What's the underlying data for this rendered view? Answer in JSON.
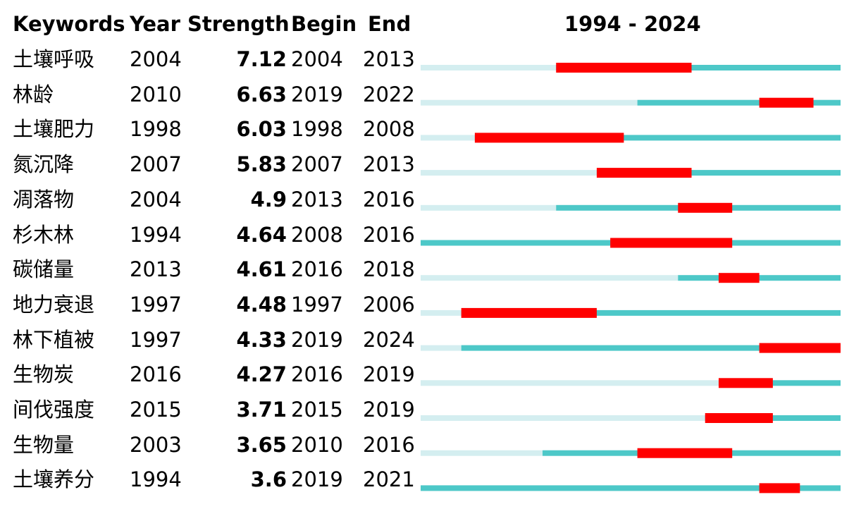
{
  "headers": {
    "keywords": "Keywords",
    "year": "Year",
    "strength": "Strength",
    "begin": "Begin",
    "end": "End",
    "range": "1994 - 2024"
  },
  "colors": {
    "pre_year": "#d4eef0",
    "active": "#4dc8c8",
    "burst": "#ff0000"
  },
  "chart_data": {
    "type": "table",
    "timeline_start": 1994,
    "timeline_end": 2024,
    "columns": [
      "Keywords",
      "Year",
      "Strength",
      "Begin",
      "End",
      "1994 - 2024"
    ],
    "rows": [
      {
        "keyword": "土壤呼吸",
        "year": 2004,
        "strength": "7.12",
        "begin": 2004,
        "end": 2013
      },
      {
        "keyword": "林龄",
        "year": 2010,
        "strength": "6.63",
        "begin": 2019,
        "end": 2022
      },
      {
        "keyword": "土壤肥力",
        "year": 1998,
        "strength": "6.03",
        "begin": 1998,
        "end": 2008
      },
      {
        "keyword": "氮沉降",
        "year": 2007,
        "strength": "5.83",
        "begin": 2007,
        "end": 2013
      },
      {
        "keyword": "凋落物",
        "year": 2004,
        "strength": "4.9",
        "begin": 2013,
        "end": 2016
      },
      {
        "keyword": "杉木林",
        "year": 1994,
        "strength": "4.64",
        "begin": 2008,
        "end": 2016
      },
      {
        "keyword": "碳储量",
        "year": 2013,
        "strength": "4.61",
        "begin": 2016,
        "end": 2018
      },
      {
        "keyword": "地力衰退",
        "year": 1997,
        "strength": "4.48",
        "begin": 1997,
        "end": 2006
      },
      {
        "keyword": "林下植被",
        "year": 1997,
        "strength": "4.33",
        "begin": 2019,
        "end": 2024
      },
      {
        "keyword": "生物炭",
        "year": 2016,
        "strength": "4.27",
        "begin": 2016,
        "end": 2019
      },
      {
        "keyword": "间伐强度",
        "year": 2015,
        "strength": "3.71",
        "begin": 2015,
        "end": 2019
      },
      {
        "keyword": "生物量",
        "year": 2003,
        "strength": "3.65",
        "begin": 2010,
        "end": 2016
      },
      {
        "keyword": "土壤养分",
        "year": 1994,
        "strength": "3.6",
        "begin": 2019,
        "end": 2021
      }
    ]
  }
}
